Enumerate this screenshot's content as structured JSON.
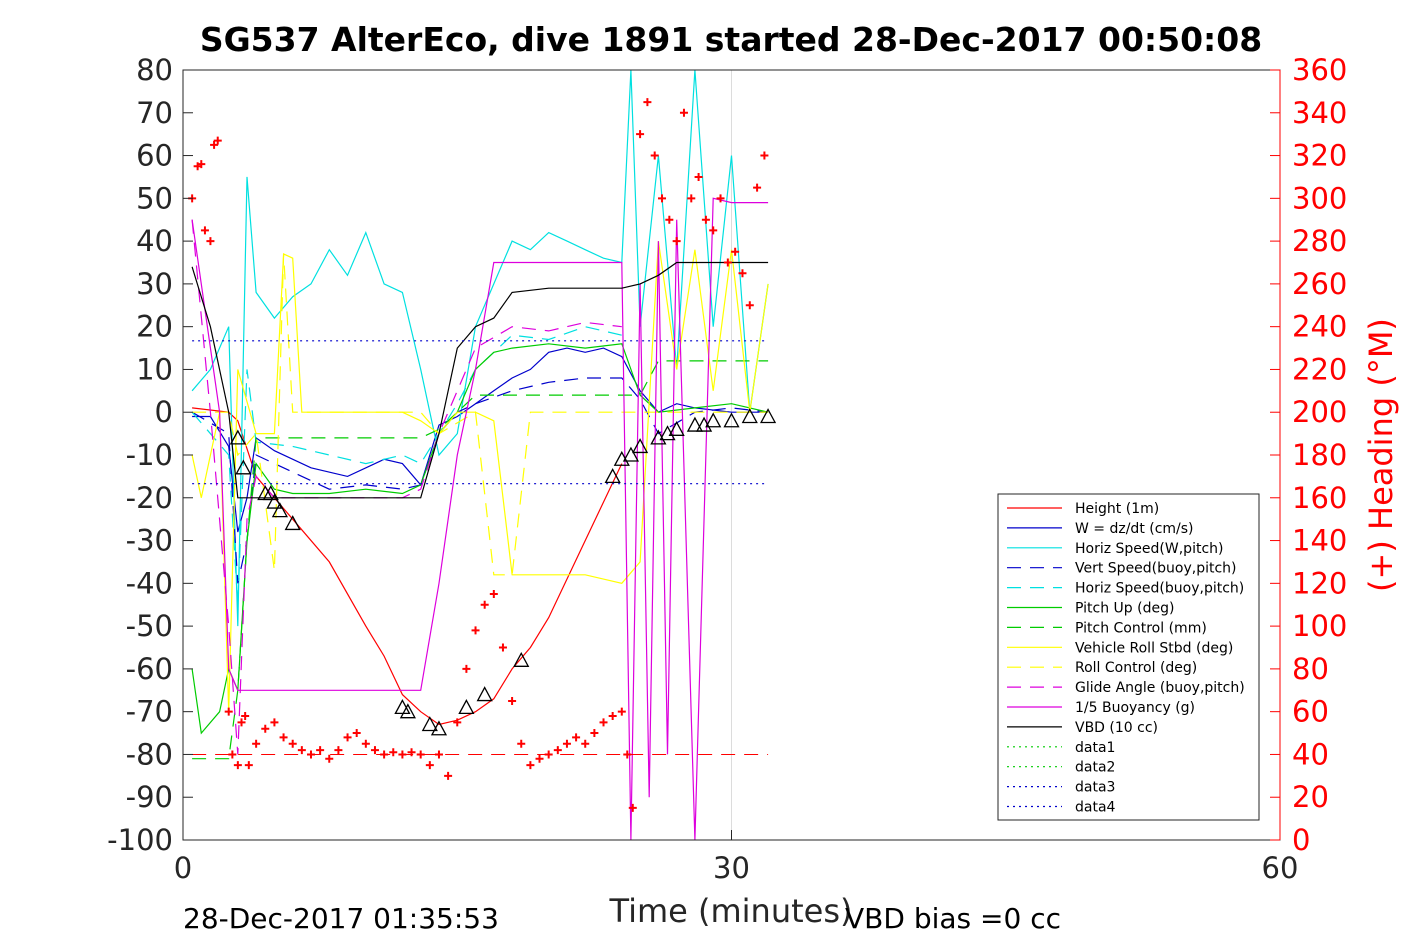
{
  "title": "SG537 AlterEco, dive 1891 started 28-Dec-2017 00:50:08",
  "footer": {
    "timestamp": "28-Dec-2017 01:35:53",
    "vbd_bias": "VBD bias =0 cc"
  },
  "chart_data": {
    "type": "line",
    "title": "SG537 AlterEco, dive 1891 started 28-Dec-2017 00:50:08",
    "xlabel": "Time (minutes)",
    "ylabel": "",
    "y2label": "(+) Heading (°M)",
    "xlim": [
      0,
      60
    ],
    "ylim": [
      -100,
      80
    ],
    "y2lim": [
      0,
      360
    ],
    "xticks": [
      0,
      30,
      60
    ],
    "yticks": [
      -100,
      -90,
      -80,
      -70,
      -60,
      -50,
      -40,
      -30,
      -20,
      -10,
      0,
      10,
      20,
      30,
      40,
      50,
      60,
      70,
      80
    ],
    "y2ticks": [
      0,
      20,
      40,
      60,
      80,
      100,
      120,
      140,
      160,
      180,
      200,
      220,
      240,
      260,
      280,
      300,
      320,
      340,
      360
    ],
    "grid": "x-only",
    "legend_position": "bottom-right",
    "series": [
      {
        "name": "Height (1m)",
        "color": "#ff0000",
        "style": "solid",
        "x": [
          0.5,
          2.5,
          3.0,
          4.0,
          5.0,
          6.0,
          8.0,
          10.0,
          11.0,
          12.0,
          13.0,
          14.0,
          15.0,
          16.0,
          17.0,
          18.0,
          19.0,
          20.0,
          22.0,
          24.0
        ],
        "y": [
          1,
          0,
          -2,
          -15,
          -20,
          -25,
          -35,
          -50,
          -57,
          -66,
          -70,
          -73,
          -72,
          -70,
          -67,
          -60,
          -55,
          -48,
          -30,
          -12
        ]
      },
      {
        "name": "W = dz/dt (cm/s)",
        "color": "#0000cc",
        "style": "solid",
        "x": [
          0.5,
          1.5,
          2.5,
          3.0,
          3.5,
          4.0,
          5.0,
          7.0,
          9.0,
          11.0,
          12.0,
          13.0,
          14.0,
          15.0,
          16.0,
          17.0,
          18.0,
          19.0,
          20.0,
          21.0,
          22.0,
          23.0,
          24.0,
          25.0,
          26.0,
          27.0,
          28.0,
          30.0,
          32.0
        ],
        "y": [
          -1,
          -1,
          -8,
          -28,
          -20,
          -6,
          -9,
          -13,
          -15,
          -11,
          -12,
          -17,
          -3,
          -1,
          2,
          5,
          8,
          10,
          14,
          15,
          14,
          15,
          13,
          5,
          0,
          2,
          1,
          0,
          0
        ]
      },
      {
        "name": "Horiz Speed(W,pitch)",
        "color": "#00e0e0",
        "style": "solid",
        "x": [
          0.5,
          1.5,
          2.5,
          3.0,
          3.5,
          4.0,
          5.0,
          6.0,
          7.0,
          8.0,
          9.0,
          10.0,
          11.0,
          12.0,
          13.0,
          14.0,
          15.0,
          16.0,
          17.0,
          18.0,
          19.0,
          20.0,
          21.0,
          22.0,
          23.0,
          24.0,
          24.5,
          25.0,
          26.0,
          27.0,
          28.0,
          29.0,
          30.0,
          31.0,
          32.0
        ],
        "y": [
          5,
          10,
          20,
          -50,
          55,
          28,
          22,
          27,
          30,
          38,
          32,
          42,
          30,
          28,
          10,
          -10,
          -5,
          20,
          30,
          40,
          38,
          42,
          40,
          38,
          36,
          35,
          80,
          20,
          60,
          10,
          80,
          20,
          60,
          0,
          30
        ]
      },
      {
        "name": "Vert Speed(buoy,pitch)",
        "color": "#0000cc",
        "style": "dash",
        "x": [
          0.5,
          2.5,
          3.0,
          3.5,
          4.0,
          6.0,
          8.0,
          10.0,
          12.0,
          13.0,
          14.0,
          15.0,
          16.0,
          18.0,
          20.0,
          22.0,
          24.0,
          25.0,
          26.0,
          28.0,
          30.0,
          32.0
        ],
        "y": [
          0,
          -5,
          -40,
          -30,
          -10,
          -14,
          -18,
          -17,
          -18,
          -17,
          -5,
          0,
          2,
          5,
          7,
          8,
          8,
          3,
          -5,
          0,
          1,
          0
        ]
      },
      {
        "name": "Horiz Speed(buoy,pitch)",
        "color": "#00e0e0",
        "style": "dash",
        "x": [
          0.5,
          2.5,
          3.0,
          3.5,
          4.0,
          6.0,
          8.0,
          10.0,
          12.0,
          13.0,
          14.0,
          15.0,
          16.0,
          18.0,
          20.0,
          22.0,
          24.0
        ],
        "y": [
          0,
          -10,
          -45,
          10,
          -7,
          -8,
          -10,
          -12,
          -10,
          -12,
          -5,
          2,
          10,
          18,
          17,
          20,
          18
        ]
      },
      {
        "name": "Pitch Up (deg)",
        "color": "#00cc00",
        "style": "solid",
        "x": [
          0.5,
          1.0,
          2.0,
          2.5,
          3.0,
          3.5,
          4.0,
          5.0,
          6.0,
          8.0,
          10.0,
          12.0,
          13.0,
          14.0,
          15.0,
          16.0,
          17.0,
          18.0,
          20.0,
          22.0,
          24.0,
          25.0,
          26.0,
          28.0,
          30.0,
          32.0
        ],
        "y": [
          -60,
          -75,
          -70,
          -60,
          -65,
          -30,
          -12,
          -18,
          -19,
          -19,
          -18,
          -19,
          -17,
          -5,
          0,
          10,
          14,
          15,
          16,
          15,
          16,
          4,
          0,
          1,
          2,
          0
        ]
      },
      {
        "name": "Pitch Control (mm)",
        "color": "#00cc00",
        "style": "dash",
        "x": [
          0.5,
          2.5,
          3.0,
          3.5,
          4.0,
          13.0,
          14.0,
          16.0,
          24.0,
          25.0,
          26.0,
          32.0
        ],
        "y": [
          -81,
          -81,
          -65,
          -30,
          -6,
          -6,
          -4,
          4,
          4,
          4,
          12,
          12
        ]
      },
      {
        "name": "Vehicle Roll Stbd (deg)",
        "color": "#ffff00",
        "style": "solid",
        "x": [
          0.5,
          1.0,
          2.0,
          2.5,
          3.0,
          4.0,
          5.0,
          5.5,
          6.0,
          6.5,
          8.0,
          10.0,
          12.0,
          13.0,
          14.0,
          15.0,
          16.0,
          17.0,
          17.5,
          18.0,
          20.0,
          22.0,
          24.0,
          25.0,
          26.0,
          27.0,
          28.0,
          29.0,
          30.0,
          31.0,
          32.0
        ],
        "y": [
          -10,
          -20,
          0,
          -70,
          10,
          -5,
          -5,
          37,
          36,
          0,
          0,
          0,
          0,
          -2,
          -5,
          0,
          0,
          -2,
          -20,
          -38,
          -38,
          -38,
          -40,
          -35,
          40,
          10,
          38,
          5,
          38,
          0,
          30
        ]
      },
      {
        "name": "Roll Control (deg)",
        "color": "#ffff00",
        "style": "dash",
        "x": [
          0.5,
          2.5,
          3.0,
          4.0,
          5.0,
          5.5,
          6.0,
          12.0,
          13.0,
          14.0,
          16.0,
          17.0,
          18.0,
          19.0,
          24.0,
          26.0,
          32.0
        ],
        "y": [
          0,
          0,
          -10,
          -5,
          -37,
          37,
          0,
          0,
          0,
          -5,
          0,
          -38,
          -38,
          0,
          0,
          0,
          0
        ]
      },
      {
        "name": "Glide Angle (buoy,pitch)",
        "color": "#dd00dd",
        "style": "dash",
        "x": [
          0.5,
          1.5,
          2.5,
          3.0,
          3.5,
          4.0,
          5.0,
          8.0,
          12.0,
          13.0,
          14.0,
          15.0,
          16.0,
          18.0,
          20.0,
          22.0,
          24.0
        ],
        "y": [
          45,
          0,
          -50,
          -80,
          -25,
          -15,
          -20,
          -20,
          -20,
          -18,
          -5,
          5,
          15,
          20,
          19,
          21,
          20
        ]
      },
      {
        "name": "1/5 Buoyancy (g)",
        "color": "#dd00dd",
        "style": "solid",
        "x": [
          0.5,
          2.0,
          2.5,
          3.0,
          3.5,
          12.0,
          13.0,
          14.0,
          15.0,
          16.0,
          17.0,
          24.0,
          24.5,
          25.0,
          25.5,
          26.0,
          26.5,
          27.0,
          28.0,
          29.0,
          30.0,
          31.0,
          32.0
        ],
        "y": [
          45,
          0,
          -60,
          -65,
          -65,
          -65,
          -65,
          -40,
          -10,
          10,
          35,
          35,
          -100,
          30,
          -90,
          40,
          -80,
          45,
          -100,
          50,
          49,
          49,
          49
        ]
      },
      {
        "name": "VBD (10 cc)",
        "color": "#000000",
        "style": "solid",
        "x": [
          0.5,
          1.5,
          2.5,
          3.0,
          4.0,
          8.0,
          12.0,
          13.0,
          14.0,
          15.0,
          16.0,
          17.0,
          18.0,
          20.0,
          22.0,
          24.0,
          25.0,
          26.0,
          27.0,
          28.0,
          30.0,
          32.0
        ],
        "y": [
          34,
          20,
          0,
          -20,
          -20,
          -20,
          -20,
          -20,
          -5,
          15,
          20,
          22,
          28,
          29,
          29,
          29,
          30,
          32,
          35,
          35,
          35,
          35
        ]
      },
      {
        "name": "data1",
        "color": "#00cc00",
        "style": "dot",
        "x": [],
        "y": []
      },
      {
        "name": "data2",
        "color": "#00cc00",
        "style": "dot",
        "x": [],
        "y": []
      },
      {
        "name": "data3",
        "color": "#0000cc",
        "style": "dot",
        "x": [
          0.5,
          32.0
        ],
        "y": [
          16.7,
          16.7
        ]
      },
      {
        "name": "data4",
        "color": "#0000cc",
        "style": "dot",
        "x": [
          0.5,
          32.0
        ],
        "y": [
          -16.7,
          -16.7
        ]
      }
    ],
    "heading_threshold": {
      "color": "#ff0000",
      "style": "dash",
      "x": [
        0.5,
        32.0
      ],
      "y2": [
        40,
        40
      ]
    },
    "heading_points": {
      "color": "#ff0000",
      "x": [
        0.5,
        0.8,
        1.0,
        1.2,
        1.5,
        1.7,
        1.9,
        2.5,
        2.7,
        3.0,
        3.2,
        3.4,
        3.6,
        4.0,
        4.5,
        5.0,
        5.5,
        6.0,
        6.5,
        7.0,
        7.5,
        8.0,
        8.5,
        9.0,
        9.5,
        10.0,
        10.5,
        11.0,
        11.5,
        12.0,
        12.5,
        13.0,
        13.5,
        14.0,
        14.5,
        15.0,
        15.5,
        16.0,
        16.5,
        17.0,
        17.5,
        18.0,
        18.5,
        19.0,
        19.5,
        20.0,
        20.5,
        21.0,
        21.5,
        22.0,
        22.5,
        23.0,
        23.5,
        24.0,
        24.3,
        24.6,
        25.0,
        25.4,
        25.8,
        26.2,
        26.6,
        27.0,
        27.4,
        27.8,
        28.2,
        28.6,
        29.0,
        29.4,
        29.8,
        30.2,
        30.6,
        31.0,
        31.4,
        31.8
      ],
      "y2": [
        300,
        315,
        316,
        285,
        280,
        325,
        327,
        60,
        40,
        35,
        55,
        58,
        35,
        45,
        52,
        55,
        48,
        45,
        42,
        40,
        42,
        38,
        42,
        48,
        50,
        45,
        42,
        40,
        41,
        40,
        41,
        40,
        35,
        40,
        30,
        55,
        80,
        98,
        110,
        115,
        90,
        65,
        45,
        35,
        38,
        40,
        42,
        45,
        48,
        45,
        50,
        55,
        58,
        60,
        40,
        15,
        330,
        345,
        320,
        300,
        290,
        280,
        340,
        300,
        310,
        290,
        285,
        300,
        270,
        275,
        265,
        250,
        305,
        320
      ]
    },
    "markers": {
      "color": "#000000",
      "x": [
        3.0,
        3.3,
        4.5,
        4.8,
        5.0,
        5.3,
        6.0,
        12.0,
        12.3,
        13.5,
        14.0,
        15.5,
        16.5,
        18.5,
        23.5,
        24.0,
        24.5,
        25.0,
        26.0,
        26.5,
        27.0,
        28.0,
        28.5,
        29.0,
        30.0,
        31.0,
        32.0
      ],
      "y": [
        -6,
        -13,
        -19,
        -19,
        -21,
        -23,
        -26,
        -69,
        -70,
        -73,
        -74,
        -69,
        -66,
        -58,
        -15,
        -11,
        -10,
        -8,
        -6,
        -5,
        -4,
        -3,
        -3,
        -2,
        -2,
        -1,
        -1
      ]
    }
  }
}
